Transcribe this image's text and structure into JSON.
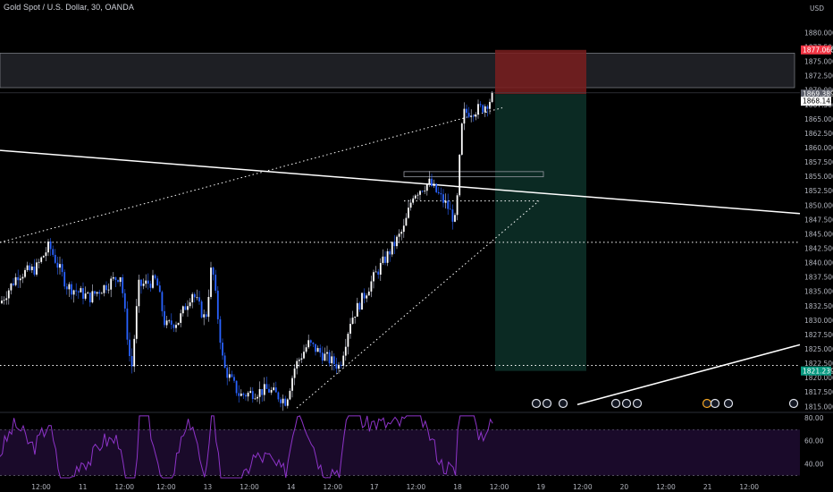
{
  "legend": {
    "title": "Gold Spot / U.S. Dollar, 30, OANDA"
  },
  "currency": "USD",
  "colors": {
    "background": "#000000",
    "candle_up": "#ffffff",
    "candle_down": "#2962ff",
    "wick": "#5d6a9a",
    "stop_zone": "#7a1f1f",
    "target_zone": "#0b2a23",
    "rsi_line": "#8e34c9",
    "rsi_band": "#1a0a2a",
    "price_tag_red": "#f23645",
    "price_tag_green": "#089981",
    "grid_axis": "#b2b5be"
  },
  "price_axis": {
    "ticks": [
      1880,
      1877.5,
      1875,
      1872.5,
      1870,
      1867.5,
      1865,
      1862.5,
      1860,
      1857.5,
      1855,
      1852.5,
      1850,
      1847.5,
      1845,
      1842.5,
      1840,
      1837.5,
      1835,
      1832.5,
      1830,
      1827.5,
      1825,
      1822.5,
      1820,
      1817.5,
      1815
    ],
    "tick_labels": [
      "1880.000",
      "1877.500",
      "1875.000",
      "1872.500",
      "1870.000",
      "1867.500",
      "1865.000",
      "1862.500",
      "1860.000",
      "1857.500",
      "1855.000",
      "1852.500",
      "1850.000",
      "1847.500",
      "1845.000",
      "1842.500",
      "1840.000",
      "1837.500",
      "1835.000",
      "1832.500",
      "1830.000",
      "1827.500",
      "1825.000",
      "1822.500",
      "1820.000",
      "1817.500",
      "1815.000"
    ],
    "range": [
      1814.5,
      1884.5
    ]
  },
  "current_labels": [
    {
      "value": 1877.066,
      "text": "1877.066",
      "style": "red"
    },
    {
      "value": 1869.389,
      "text": "1869.389",
      "style": "gray"
    },
    {
      "value": 1868.145,
      "text": "1868.145",
      "style": "white"
    },
    {
      "value": 1821.239,
      "text": "1821.239",
      "style": "green"
    }
  ],
  "time_axis": {
    "labels": [
      "12:00",
      "11",
      "12:00",
      "12:00",
      "13",
      "12:00",
      "14",
      "12:00",
      "17",
      "12:00",
      "18",
      "12:00",
      "19",
      "12:00",
      "20",
      "12:00",
      "21",
      "12:00"
    ]
  },
  "rsi_axis": {
    "labels": [
      "80.00",
      "60.00",
      "40.00"
    ],
    "ticks": [
      80,
      60,
      40
    ],
    "range": [
      25,
      85
    ],
    "band": [
      30,
      70
    ]
  },
  "chart_data": {
    "type": "candlestick",
    "instrument": "Gold Spot / U.S. Dollar",
    "interval": "30",
    "source": "OANDA",
    "horizontal_levels": [
      1876.5,
      1870.5,
      1869.389,
      1850.8,
      1843.6,
      1822.2,
      1821.239
    ],
    "position": {
      "entry": 1869.389,
      "stop": 1877.066,
      "target": 1821.239
    },
    "close_price": 1868.145,
    "price_range": [
      1814.5,
      1884.5
    ],
    "rsi": {
      "overbought": 70,
      "oversold": 30,
      "range": [
        25,
        85
      ]
    }
  }
}
